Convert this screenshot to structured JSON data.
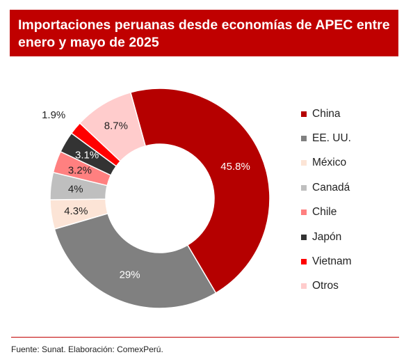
{
  "title": "Importaciones peruanas desde economías de APEC entre enero y mayo de 2025",
  "source": "Fuente: Sunat. Elaboración: ComexPerú.",
  "colors": {
    "title_bg": "#c00000",
    "rule": "#c00000"
  },
  "chart_data": {
    "type": "pie",
    "donut": true,
    "legend_position": "right",
    "slices": [
      {
        "name": "China",
        "value": 45.8,
        "label": "45.8%",
        "color": "#b50000",
        "label_color": "#ffffff"
      },
      {
        "name": "EE. UU.",
        "value": 29,
        "label": "29%",
        "color": "#808080",
        "label_color": "#ffffff"
      },
      {
        "name": "México",
        "value": 4.3,
        "label": "4.3%",
        "color": "#fce4d6",
        "label_color": "#222222"
      },
      {
        "name": "Canadá",
        "value": 4,
        "label": "4%",
        "color": "#bfbfbf",
        "label_color": "#222222"
      },
      {
        "name": "Chile",
        "value": 3.2,
        "label": "3.2%",
        "color": "#ff8080",
        "label_color": "#222222"
      },
      {
        "name": "Japón",
        "value": 3.1,
        "label": "3.1%",
        "color": "#333333",
        "label_color": "#ffffff"
      },
      {
        "name": "Vietnam",
        "value": 1.9,
        "label": "1.9%",
        "color": "#ff0000",
        "label_color": "#222222"
      },
      {
        "name": "Otros",
        "value": 8.7,
        "label": "8.7%",
        "color": "#ffcccc",
        "label_color": "#222222"
      }
    ]
  }
}
